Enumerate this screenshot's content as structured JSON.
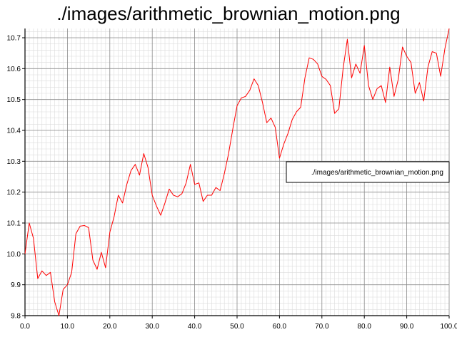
{
  "chart_data": {
    "type": "line",
    "title": "./images/arithmetic_brownian_motion.png",
    "xlabel": "",
    "ylabel": "",
    "xlim": [
      0,
      100
    ],
    "ylim": [
      9.8,
      10.73
    ],
    "grid": "major-and-minor",
    "legend_placement": "right",
    "x_ticks": [
      "0.0",
      "10.0",
      "20.0",
      "30.0",
      "40.0",
      "50.0",
      "60.0",
      "70.0",
      "80.0",
      "90.0",
      "100.0"
    ],
    "y_ticks": [
      "9.8",
      "9.9",
      "10.0",
      "10.1",
      "10.2",
      "10.3",
      "10.4",
      "10.5",
      "10.6",
      "10.7"
    ],
    "series": [
      {
        "name": "./images/arithmetic_brownian_motion.png",
        "color": "#ff0000",
        "x": [
          0,
          1,
          2,
          3,
          4,
          5,
          6,
          7,
          8,
          9,
          10,
          11,
          12,
          13,
          14,
          15,
          16,
          17,
          18,
          19,
          20,
          21,
          22,
          23,
          24,
          25,
          26,
          27,
          28,
          29,
          30,
          31,
          32,
          33,
          34,
          35,
          36,
          37,
          38,
          39,
          40,
          41,
          42,
          43,
          44,
          45,
          46,
          47,
          48,
          49,
          50,
          51,
          52,
          53,
          54,
          55,
          56,
          57,
          58,
          59,
          60,
          61,
          62,
          63,
          64,
          65,
          66,
          67,
          68,
          69,
          70,
          71,
          72,
          73,
          74,
          75,
          76,
          77,
          78,
          79,
          80,
          81,
          82,
          83,
          84,
          85,
          86,
          87,
          88,
          89,
          90,
          91,
          92,
          93,
          94,
          95,
          96,
          97,
          98,
          99,
          100
        ],
        "values": [
          10.0,
          10.1,
          10.05,
          9.92,
          9.945,
          9.93,
          9.94,
          9.845,
          9.8,
          9.885,
          9.9,
          9.94,
          10.065,
          10.09,
          10.092,
          10.085,
          9.98,
          9.95,
          10.005,
          9.955,
          10.07,
          10.12,
          10.19,
          10.165,
          10.225,
          10.27,
          10.29,
          10.255,
          10.325,
          10.28,
          10.19,
          10.155,
          10.125,
          10.165,
          10.21,
          10.19,
          10.185,
          10.195,
          10.23,
          10.29,
          10.225,
          10.23,
          10.17,
          10.19,
          10.19,
          10.215,
          10.205,
          10.26,
          10.325,
          10.405,
          10.48,
          10.505,
          10.51,
          10.53,
          10.567,
          10.545,
          10.49,
          10.425,
          10.44,
          10.41,
          10.31,
          10.355,
          10.39,
          10.435,
          10.46,
          10.475,
          10.57,
          10.635,
          10.63,
          10.615,
          10.575,
          10.565,
          10.545,
          10.455,
          10.47,
          10.6,
          10.695,
          10.57,
          10.615,
          10.585,
          10.675,
          10.545,
          10.5,
          10.535,
          10.545,
          10.49,
          10.605,
          10.51,
          10.565,
          10.67,
          10.64,
          10.62,
          10.52,
          10.555,
          10.495,
          10.605,
          10.655,
          10.65,
          10.575,
          10.665,
          10.73
        ]
      }
    ]
  }
}
